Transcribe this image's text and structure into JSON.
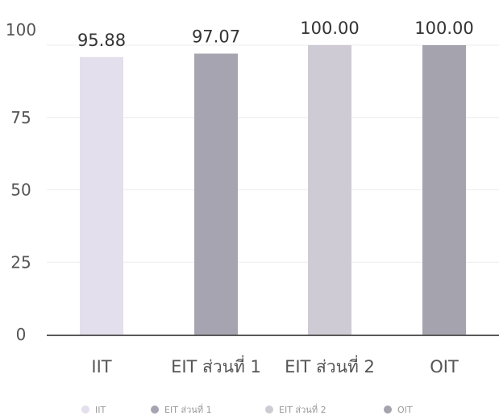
{
  "chart_data": {
    "type": "bar",
    "categories": [
      "IIT",
      "EIT ส่วนที่ 1",
      "EIT ส่วนที่ 2",
      "OIT"
    ],
    "values": [
      95.88,
      97.07,
      100.0,
      100.0
    ],
    "value_labels": [
      "95.88",
      "97.07",
      "100.00",
      "100.00"
    ],
    "colors": [
      "#e4dfec",
      "#a6a4b0",
      "#cfcbd4",
      "#a5a3ae"
    ],
    "ylim": [
      0,
      100
    ],
    "yticks": [
      0,
      25,
      50,
      75,
      100
    ],
    "grid": true,
    "legend": {
      "placement": "bottom",
      "entries": [
        "IIT",
        "EIT ส่วนที่ 1",
        "EIT ส่วนที่ 2",
        "OIT"
      ]
    }
  }
}
